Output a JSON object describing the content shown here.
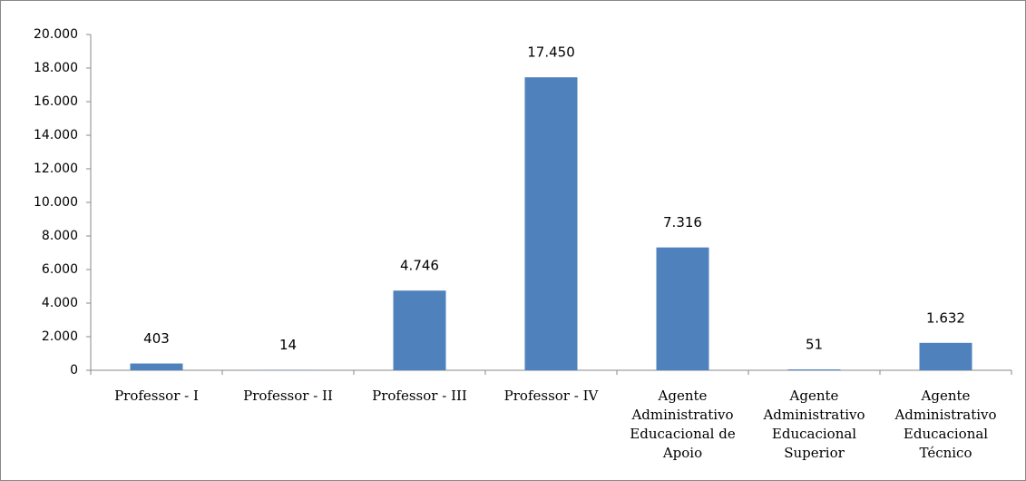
{
  "chart_data": {
    "type": "bar",
    "categories": [
      "Professor - I",
      "Professor - II",
      "Professor - III",
      "Professor - IV",
      "Agente Administrativo Educacional de Apoio",
      "Agente Administrativo Educacional Superior",
      "Agente Administrativo Educacional Técnico"
    ],
    "values": [
      403,
      14,
      4746,
      17450,
      7316,
      51,
      1632
    ],
    "value_labels": [
      "403",
      "14",
      "4.746",
      "17.450",
      "7.316",
      "51",
      "1.632"
    ],
    "color": "#4f81bd",
    "ylim": [
      0,
      20000
    ],
    "yticks": [
      {
        "value": 0,
        "label": "0"
      },
      {
        "value": 2000,
        "label": "2.000"
      },
      {
        "value": 4000,
        "label": "4.000"
      },
      {
        "value": 6000,
        "label": "6.000"
      },
      {
        "value": 8000,
        "label": "8.000"
      },
      {
        "value": 10000,
        "label": "10.000"
      },
      {
        "value": 12000,
        "label": "12.000"
      },
      {
        "value": 14000,
        "label": "14.000"
      },
      {
        "value": 16000,
        "label": "16.000"
      },
      {
        "value": 18000,
        "label": "18.000"
      },
      {
        "value": 20000,
        "label": "20.000"
      }
    ],
    "grid": false
  }
}
